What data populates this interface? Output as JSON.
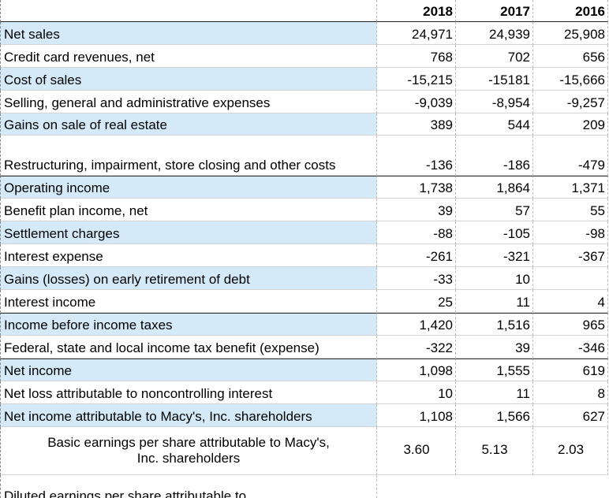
{
  "table": {
    "columns": [
      "2018",
      "2017",
      "2016"
    ],
    "rows": [
      {
        "label": "Net sales",
        "values": [
          "24,971",
          "24,939",
          "25,908"
        ]
      },
      {
        "label": "Credit card revenues, net",
        "values": [
          "768",
          "702",
          "656"
        ]
      },
      {
        "label": "Cost of sales",
        "values": [
          "-15,215",
          "-15181",
          "-15,666"
        ]
      },
      {
        "label": "Selling, general and administrative expenses",
        "values": [
          "-9,039",
          "-8,954",
          "-9,257"
        ]
      },
      {
        "label": "Gains on sale of real estate",
        "values": [
          "389",
          "544",
          "209"
        ]
      },
      {
        "label": "Restructuring, impairment, store closing and other costs",
        "values": [
          "-136",
          "-186",
          "-479"
        ]
      },
      {
        "label": "Operating income",
        "values": [
          "1,738",
          "1,864",
          "1,371"
        ]
      },
      {
        "label": "Benefit plan income, net",
        "values": [
          "39",
          "57",
          "55"
        ]
      },
      {
        "label": "Settlement charges",
        "values": [
          "-88",
          "-105",
          "-98"
        ]
      },
      {
        "label": "Interest expense",
        "values": [
          "-261",
          "-321",
          "-367"
        ]
      },
      {
        "label": "Gains (losses) on early retirement of debt",
        "values": [
          "-33",
          "10",
          null
        ]
      },
      {
        "label": "Interest income",
        "values": [
          "25",
          "11",
          "4"
        ]
      },
      {
        "label": "Income before income taxes",
        "values": [
          "1,420",
          "1,516",
          "965"
        ]
      },
      {
        "label": "Federal, state and local income tax benefit (expense)",
        "values": [
          "-322",
          "39",
          "-346"
        ]
      },
      {
        "label": "Net income",
        "values": [
          "1,098",
          "1,555",
          "619"
        ]
      },
      {
        "label": "Net loss attributable to noncontrolling interest",
        "values": [
          "10",
          "11",
          "8"
        ]
      },
      {
        "label": "Net income attributable to Macy's, Inc. shareholders",
        "values": [
          "1,108",
          "1,566",
          "627"
        ]
      },
      {
        "label": "Basic earnings per share attributable to Macy's, Inc. shareholders",
        "values": [
          "3.60",
          "5.13",
          "2.03"
        ]
      },
      {
        "label": "Diluted earnings per share attributable to"
      }
    ]
  }
}
